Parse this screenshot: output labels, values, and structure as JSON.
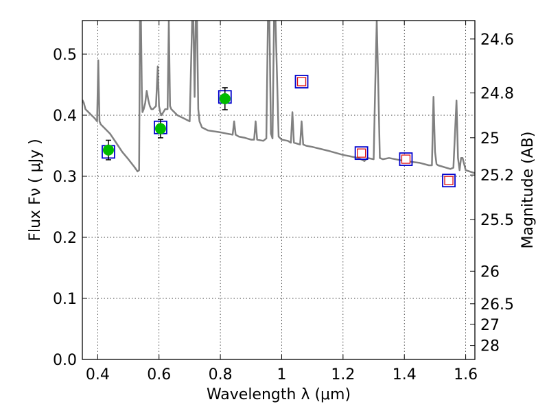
{
  "chart_data": {
    "type": "scatter",
    "xlabel": "Wavelength  λ (μm)",
    "ylabel": "Flux  Fν  ( μJy )",
    "y2label": "Magnitude (AB)",
    "xlim": [
      0.35,
      1.63
    ],
    "ylim": [
      0.0,
      0.555
    ],
    "grid": true,
    "x_ticks": [
      0.4,
      0.6,
      0.8,
      1.0,
      1.2,
      1.4,
      1.6
    ],
    "x_tick_labels": [
      "0.4",
      "0.6",
      "0.8",
      "1",
      "1.2",
      "1.4",
      "1.6"
    ],
    "y_ticks": [
      0.0,
      0.1,
      0.2,
      0.3,
      0.4,
      0.5
    ],
    "y_tick_labels": [
      "0.0",
      "0.1",
      "0.2",
      "0.3",
      "0.4",
      "0.5"
    ],
    "mag_ticks": [
      24.6,
      24.8,
      25.0,
      25.2,
      25.5,
      26.0,
      26.5,
      27.0,
      28.0
    ],
    "mag_tick_labels": [
      "24.6",
      "24.8",
      "25",
      "25.2",
      "25.5",
      "26",
      "26.5",
      "27",
      "28"
    ],
    "colors": {
      "model": "#808080",
      "observed": "#00bb00",
      "model_box": "#0000cc",
      "model_pred": "#dd1111",
      "errorbar": "#000000"
    },
    "model_spectrum": {
      "x": [
        0.35,
        0.355,
        0.36,
        0.37,
        0.38,
        0.39,
        0.398,
        0.402,
        0.406,
        0.41,
        0.42,
        0.44,
        0.46,
        0.48,
        0.5,
        0.52,
        0.53,
        0.535,
        0.538,
        0.541,
        0.544,
        0.546,
        0.55,
        0.555,
        0.56,
        0.565,
        0.57,
        0.575,
        0.58,
        0.59,
        0.596,
        0.6,
        0.604,
        0.608,
        0.62,
        0.628,
        0.632,
        0.636,
        0.64,
        0.66,
        0.68,
        0.7,
        0.708,
        0.712,
        0.716,
        0.72,
        0.724,
        0.728,
        0.732,
        0.74,
        0.76,
        0.8,
        0.82,
        0.84,
        0.845,
        0.85,
        0.86,
        0.88,
        0.9,
        0.91,
        0.915,
        0.92,
        0.94,
        0.95,
        0.955,
        0.96,
        0.965,
        0.97,
        0.975,
        0.98,
        0.99,
        1.0,
        1.02,
        1.03,
        1.035,
        1.04,
        1.06,
        1.065,
        1.07,
        1.08,
        1.1,
        1.15,
        1.2,
        1.25,
        1.27,
        1.28,
        1.3,
        1.305,
        1.31,
        1.315,
        1.32,
        1.33,
        1.35,
        1.4,
        1.45,
        1.48,
        1.49,
        1.495,
        1.5,
        1.505,
        1.51,
        1.55,
        1.56,
        1.57,
        1.575,
        1.58,
        1.585,
        1.59,
        1.6,
        1.63
      ],
      "y": [
        0.425,
        0.42,
        0.41,
        0.405,
        0.4,
        0.395,
        0.39,
        0.49,
        0.39,
        0.385,
        0.38,
        0.37,
        0.355,
        0.34,
        0.328,
        0.315,
        0.308,
        0.31,
        0.555,
        0.555,
        0.44,
        0.405,
        0.41,
        0.42,
        0.44,
        0.425,
        0.415,
        0.41,
        0.41,
        0.415,
        0.48,
        0.415,
        0.405,
        0.4,
        0.41,
        0.41,
        0.555,
        0.415,
        0.41,
        0.4,
        0.395,
        0.39,
        0.555,
        0.555,
        0.43,
        0.555,
        0.555,
        0.41,
        0.39,
        0.38,
        0.375,
        0.372,
        0.37,
        0.368,
        0.39,
        0.368,
        0.365,
        0.363,
        0.36,
        0.36,
        0.39,
        0.36,
        0.358,
        0.362,
        0.555,
        0.555,
        0.37,
        0.362,
        0.555,
        0.555,
        0.365,
        0.36,
        0.358,
        0.355,
        0.405,
        0.355,
        0.352,
        0.39,
        0.352,
        0.35,
        0.348,
        0.342,
        0.335,
        0.33,
        0.325,
        0.33,
        0.328,
        0.45,
        0.555,
        0.45,
        0.33,
        0.328,
        0.33,
        0.325,
        0.322,
        0.318,
        0.318,
        0.43,
        0.34,
        0.32,
        0.318,
        0.312,
        0.314,
        0.424,
        0.33,
        0.31,
        0.33,
        0.33,
        0.31,
        0.305
      ],
      "clip_top": true
    },
    "observed": {
      "x": [
        0.435,
        0.605,
        0.815
      ],
      "y": [
        0.343,
        0.378,
        0.427
      ],
      "err": [
        0.016,
        0.015,
        0.018
      ]
    },
    "model_boxes": {
      "x": [
        0.435,
        0.605,
        0.815,
        1.065,
        1.26,
        1.405,
        1.545
      ],
      "y": [
        0.34,
        0.38,
        0.43,
        0.455,
        0.338,
        0.328,
        0.293
      ],
      "inner": [
        false,
        false,
        false,
        true,
        true,
        true,
        true
      ]
    }
  }
}
